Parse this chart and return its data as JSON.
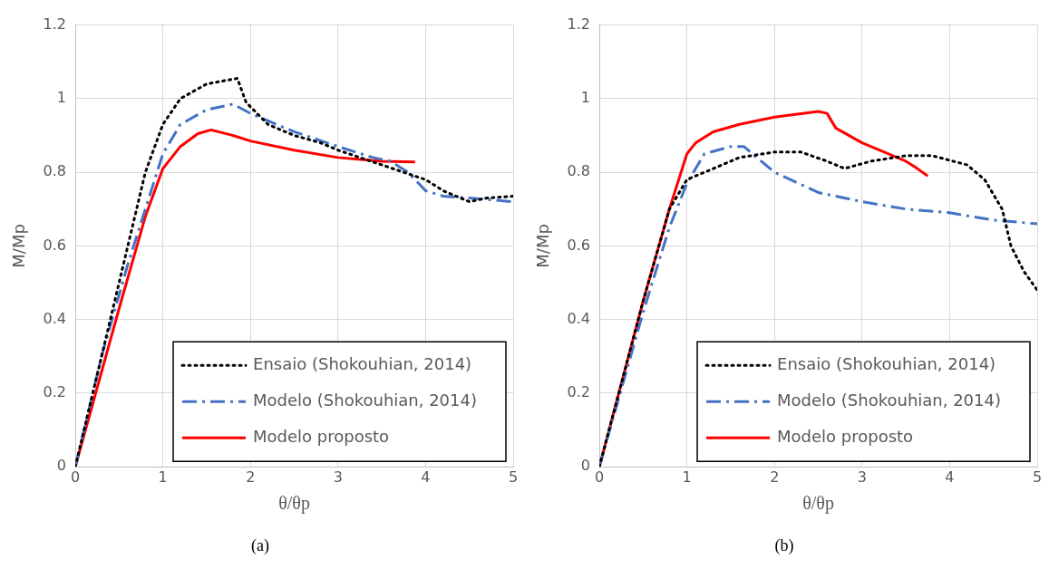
{
  "chart_data": [
    {
      "type": "line",
      "title": "(a)",
      "xlabel": "θ/θp",
      "ylabel": "M/Mp",
      "xlim": [
        0,
        5
      ],
      "xticks": [
        0,
        1,
        2,
        3,
        4,
        5
      ],
      "ylim": [
        0,
        1.2
      ],
      "yticks": [
        0,
        0.2,
        0.4,
        0.6,
        0.8,
        1,
        1.2
      ],
      "grid": true,
      "legend": "bottom right",
      "marker": "none",
      "series": [
        {
          "name": "Ensaio (Shokouhian, 2014)",
          "color": "#000000",
          "line_style": "dotted",
          "x": [
            0,
            0.2,
            0.5,
            0.8,
            1,
            1.2,
            1.5,
            1.85,
            1.95,
            2.2,
            2.5,
            2.8,
            3,
            3.5,
            4,
            4.2,
            4.5,
            4.7,
            5
          ],
          "values": [
            0,
            0.2,
            0.5,
            0.8,
            0.93,
            1.0,
            1.04,
            1.055,
            0.99,
            0.93,
            0.9,
            0.88,
            0.86,
            0.82,
            0.78,
            0.75,
            0.72,
            0.73,
            0.735
          ]
        },
        {
          "name": "Modelo (Shokouhian, 2014)",
          "color": "#4472c4",
          "line_style": "dashed",
          "x": [
            0,
            0.3,
            0.6,
            1,
            1.2,
            1.5,
            1.8,
            2,
            2.5,
            3,
            3.4,
            3.6,
            3.8,
            4,
            4.2,
            4.5,
            5
          ],
          "values": [
            0,
            0.3,
            0.55,
            0.85,
            0.93,
            0.97,
            0.985,
            0.96,
            0.91,
            0.87,
            0.84,
            0.83,
            0.8,
            0.75,
            0.735,
            0.73,
            0.72
          ]
        },
        {
          "name": "Modelo proposto",
          "color": "#ff0000",
          "line_style": "solid",
          "x": [
            0,
            0.5,
            0.8,
            1,
            1.2,
            1.4,
            1.55,
            1.8,
            2,
            2.5,
            3,
            3.5,
            3.88
          ],
          "values": [
            0,
            0.43,
            0.68,
            0.81,
            0.87,
            0.905,
            0.915,
            0.9,
            0.885,
            0.86,
            0.84,
            0.83,
            0.828
          ]
        }
      ]
    },
    {
      "type": "line",
      "title": "(b)",
      "xlabel": "θ/θp",
      "ylabel": "M/Mp",
      "xlim": [
        0,
        5
      ],
      "xticks": [
        0,
        1,
        2,
        3,
        4,
        5
      ],
      "ylim": [
        0,
        1.2
      ],
      "yticks": [
        0,
        0.2,
        0.4,
        0.6,
        0.8,
        1,
        1.2
      ],
      "grid": true,
      "legend": "bottom right",
      "marker": "none",
      "series": [
        {
          "name": "Ensaio (Shokouhian, 2014)",
          "color": "#000000",
          "line_style": "dotted",
          "x": [
            0,
            0.5,
            0.8,
            1,
            1.3,
            1.6,
            2,
            2.3,
            2.6,
            2.8,
            3.1,
            3.5,
            3.8,
            4.2,
            4.4,
            4.6,
            4.7,
            4.85,
            5
          ],
          "values": [
            0,
            0.45,
            0.7,
            0.78,
            0.81,
            0.84,
            0.855,
            0.855,
            0.83,
            0.81,
            0.83,
            0.845,
            0.845,
            0.82,
            0.78,
            0.7,
            0.6,
            0.53,
            0.48
          ]
        },
        {
          "name": "Modelo (Shokouhian, 2014)",
          "color": "#4472c4",
          "line_style": "dashed",
          "x": [
            0,
            0.5,
            0.8,
            1,
            1.2,
            1.5,
            1.65,
            2,
            2.5,
            3,
            3.5,
            4,
            4.5,
            5
          ],
          "values": [
            0,
            0.42,
            0.65,
            0.77,
            0.85,
            0.87,
            0.87,
            0.8,
            0.745,
            0.72,
            0.7,
            0.69,
            0.67,
            0.66
          ]
        },
        {
          "name": "Modelo proposto",
          "color": "#ff0000",
          "line_style": "solid",
          "x": [
            0,
            0.5,
            0.8,
            1,
            1.1,
            1.3,
            1.6,
            2,
            2.5,
            2.6,
            2.7,
            3,
            3.5,
            3.6,
            3.75
          ],
          "values": [
            0,
            0.45,
            0.7,
            0.85,
            0.88,
            0.91,
            0.93,
            0.95,
            0.965,
            0.96,
            0.92,
            0.88,
            0.83,
            0.815,
            0.79
          ]
        }
      ]
    }
  ]
}
